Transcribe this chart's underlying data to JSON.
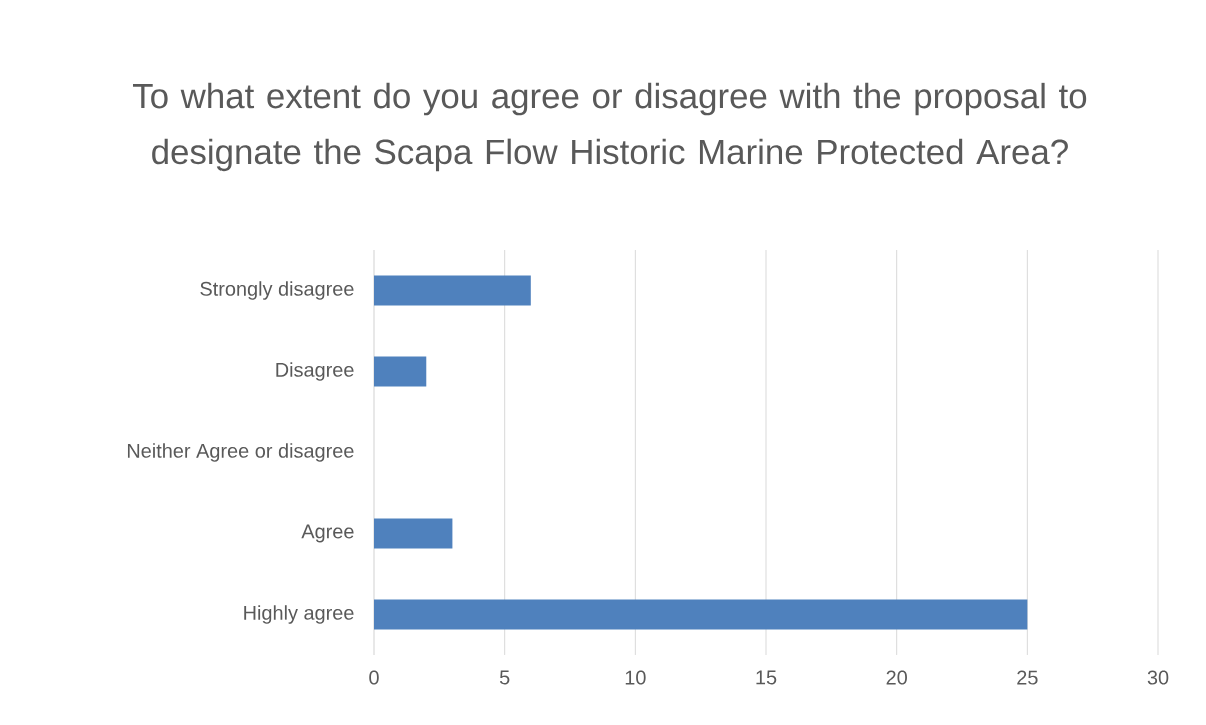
{
  "chart_data": {
    "type": "bar",
    "orientation": "horizontal",
    "title": "To what extent do you agree or disagree with the proposal to designate the Scapa Flow Historic Marine Protected Area?",
    "categories": [
      "Strongly disagree",
      "Disagree",
      "Neither Agree or disagree",
      "Agree",
      "Highly agree"
    ],
    "values": [
      6,
      2,
      0,
      3,
      25
    ],
    "color": "#4f81bd",
    "xlim": [
      0,
      30
    ],
    "xticks": [
      0,
      5,
      10,
      15,
      20,
      25,
      30
    ],
    "grid": "x"
  }
}
